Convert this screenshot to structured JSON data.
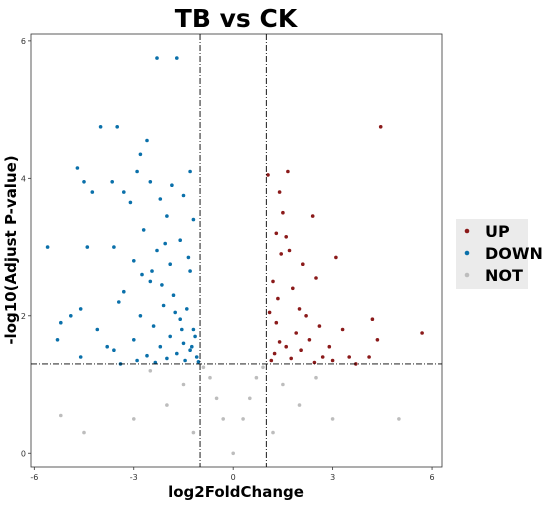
{
  "chart_data": {
    "type": "scatter",
    "title": "TB vs CK",
    "xlabel": "log2FoldChange",
    "ylabel": "-log10(Adjust P-value)",
    "xlim": [
      -6.1,
      6.3
    ],
    "ylim": [
      -0.2,
      6.1
    ],
    "x_ticks": [
      -6,
      -3,
      0,
      3,
      6
    ],
    "y_ticks": [
      0,
      2,
      4,
      6
    ],
    "x_tick_labels": [
      "-6",
      "-3",
      "0",
      "3",
      "6"
    ],
    "y_tick_labels": [
      "0",
      "2",
      "4",
      "6"
    ],
    "thresholds": {
      "log2fc": [
        -1,
        1
      ],
      "neg_log10_padj": 1.3
    },
    "grid": false,
    "legend_placement": "right",
    "colors": {
      "UP": "#8b1a1a",
      "DOWN": "#0a70aa",
      "NOT": "#bdbdbd"
    },
    "series": [
      {
        "name": "UP",
        "color": "#8b1a1a",
        "points": [
          [
            4.45,
            4.75
          ],
          [
            1.65,
            4.1
          ],
          [
            1.05,
            4.05
          ],
          [
            1.4,
            3.8
          ],
          [
            1.5,
            3.5
          ],
          [
            1.3,
            3.2
          ],
          [
            1.6,
            3.15
          ],
          [
            2.4,
            3.45
          ],
          [
            1.7,
            2.95
          ],
          [
            1.45,
            2.9
          ],
          [
            2.1,
            2.75
          ],
          [
            3.1,
            2.85
          ],
          [
            2.5,
            2.55
          ],
          [
            1.2,
            2.5
          ],
          [
            1.8,
            2.4
          ],
          [
            1.35,
            2.25
          ],
          [
            2.0,
            2.1
          ],
          [
            2.2,
            2.0
          ],
          [
            1.1,
            2.05
          ],
          [
            2.6,
            1.85
          ],
          [
            3.3,
            1.8
          ],
          [
            4.2,
            1.95
          ],
          [
            4.35,
            1.65
          ],
          [
            5.7,
            1.75
          ],
          [
            3.5,
            1.4
          ],
          [
            4.1,
            1.4
          ],
          [
            3.7,
            1.3
          ],
          [
            2.9,
            1.55
          ],
          [
            2.7,
            1.4
          ],
          [
            2.3,
            1.65
          ],
          [
            1.9,
            1.75
          ],
          [
            1.6,
            1.55
          ],
          [
            1.25,
            1.45
          ],
          [
            1.15,
            1.35
          ],
          [
            2.05,
            1.5
          ],
          [
            1.75,
            1.38
          ],
          [
            1.4,
            1.62
          ],
          [
            2.45,
            1.32
          ],
          [
            3.0,
            1.35
          ],
          [
            1.3,
            1.9
          ]
        ]
      },
      {
        "name": "DOWN",
        "color": "#0a70aa",
        "points": [
          [
            -2.3,
            5.75
          ],
          [
            -1.7,
            5.75
          ],
          [
            -3.5,
            4.75
          ],
          [
            -4.0,
            4.75
          ],
          [
            -2.6,
            4.55
          ],
          [
            -2.8,
            4.35
          ],
          [
            -2.9,
            4.1
          ],
          [
            -4.7,
            4.15
          ],
          [
            -4.5,
            3.95
          ],
          [
            -3.65,
            3.95
          ],
          [
            -4.25,
            3.8
          ],
          [
            -1.3,
            4.1
          ],
          [
            -1.85,
            3.9
          ],
          [
            -2.5,
            3.95
          ],
          [
            -3.3,
            3.8
          ],
          [
            -5.6,
            3.0
          ],
          [
            -4.4,
            3.0
          ],
          [
            -3.6,
            3.0
          ],
          [
            -5.2,
            1.9
          ],
          [
            -4.9,
            2.0
          ],
          [
            -4.6,
            2.1
          ],
          [
            -5.3,
            1.65
          ],
          [
            -4.1,
            1.8
          ],
          [
            -3.8,
            1.55
          ],
          [
            -4.6,
            1.4
          ],
          [
            -3.4,
            1.3
          ],
          [
            -2.9,
            1.35
          ],
          [
            -3.1,
            3.65
          ],
          [
            -2.2,
            3.7
          ],
          [
            -1.5,
            3.75
          ],
          [
            -2.0,
            3.45
          ],
          [
            -1.2,
            3.4
          ],
          [
            -2.7,
            3.25
          ],
          [
            -1.6,
            3.1
          ],
          [
            -2.3,
            2.95
          ],
          [
            -3.0,
            2.8
          ],
          [
            -1.9,
            2.75
          ],
          [
            -1.3,
            2.65
          ],
          [
            -2.5,
            2.5
          ],
          [
            -3.3,
            2.35
          ],
          [
            -1.8,
            2.3
          ],
          [
            -2.1,
            2.15
          ],
          [
            -1.4,
            2.1
          ],
          [
            -2.8,
            2.0
          ],
          [
            -1.6,
            1.95
          ],
          [
            -2.4,
            1.85
          ],
          [
            -1.2,
            1.8
          ],
          [
            -1.9,
            1.7
          ],
          [
            -3.0,
            1.65
          ],
          [
            -1.5,
            1.6
          ],
          [
            -2.2,
            1.55
          ],
          [
            -1.3,
            1.5
          ],
          [
            -1.7,
            1.45
          ],
          [
            -2.6,
            1.42
          ],
          [
            -1.1,
            1.4
          ],
          [
            -2.0,
            1.38
          ],
          [
            -1.45,
            1.35
          ],
          [
            -1.05,
            1.33
          ],
          [
            -2.35,
            1.32
          ],
          [
            -3.6,
            1.5
          ],
          [
            -1.25,
            1.55
          ],
          [
            -1.15,
            1.7
          ],
          [
            -1.55,
            1.8
          ],
          [
            -1.75,
            2.05
          ],
          [
            -2.15,
            2.45
          ],
          [
            -2.45,
            2.65
          ],
          [
            -1.35,
            2.85
          ],
          [
            -2.05,
            3.05
          ],
          [
            -2.75,
            2.6
          ],
          [
            -3.45,
            2.2
          ]
        ]
      },
      {
        "name": "NOT",
        "color": "#bdbdbd",
        "points": [
          [
            0.0,
            0.0
          ],
          [
            -0.3,
            0.5
          ],
          [
            0.3,
            0.5
          ],
          [
            -0.5,
            0.8
          ],
          [
            0.5,
            0.8
          ],
          [
            -0.7,
            1.1
          ],
          [
            0.7,
            1.1
          ],
          [
            -0.9,
            1.25
          ],
          [
            0.9,
            1.25
          ],
          [
            -1.5,
            1.0
          ],
          [
            1.5,
            1.0
          ],
          [
            -2.0,
            0.7
          ],
          [
            2.0,
            0.7
          ],
          [
            -3.0,
            0.5
          ],
          [
            3.0,
            0.5
          ],
          [
            -4.5,
            0.3
          ],
          [
            5.0,
            0.5
          ],
          [
            -5.2,
            0.55
          ],
          [
            -1.2,
            0.3
          ],
          [
            1.2,
            0.3
          ],
          [
            -2.5,
            1.2
          ],
          [
            2.5,
            1.1
          ]
        ]
      }
    ]
  }
}
